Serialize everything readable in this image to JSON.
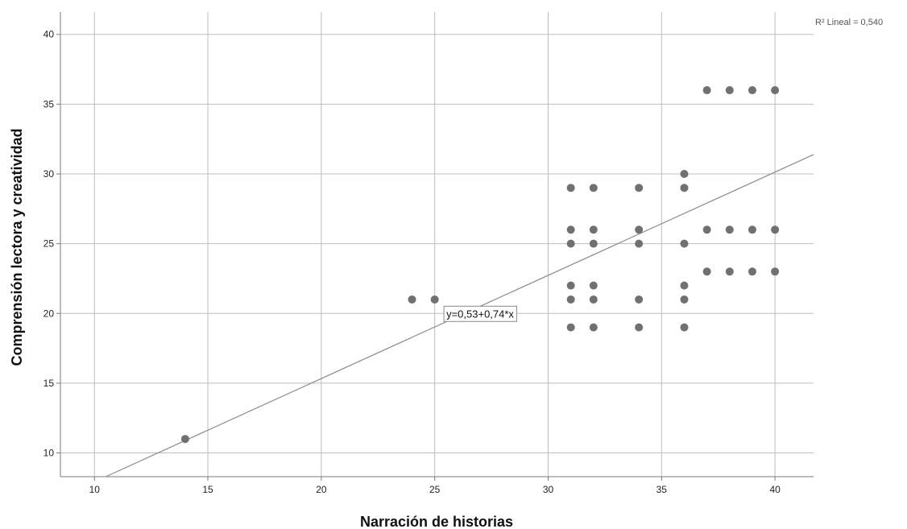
{
  "chart_data": {
    "type": "scatter",
    "xlabel": "Narración de historias",
    "ylabel": "Comprensión lectora y creatividad",
    "xlim": [
      8.5,
      41.7
    ],
    "ylim": [
      8.3,
      41.6
    ],
    "x_ticks": [
      10,
      15,
      20,
      25,
      30,
      35,
      40
    ],
    "y_ticks": [
      10,
      15,
      20,
      25,
      30,
      35,
      40
    ],
    "grid": true,
    "points": [
      {
        "x": 14,
        "y": 11
      },
      {
        "x": 24,
        "y": 21
      },
      {
        "x": 25,
        "y": 21
      },
      {
        "x": 31,
        "y": 29
      },
      {
        "x": 31,
        "y": 26
      },
      {
        "x": 31,
        "y": 25
      },
      {
        "x": 31,
        "y": 22
      },
      {
        "x": 31,
        "y": 21
      },
      {
        "x": 31,
        "y": 19
      },
      {
        "x": 32,
        "y": 29
      },
      {
        "x": 32,
        "y": 26
      },
      {
        "x": 32,
        "y": 25
      },
      {
        "x": 32,
        "y": 22
      },
      {
        "x": 32,
        "y": 21
      },
      {
        "x": 32,
        "y": 19
      },
      {
        "x": 34,
        "y": 29
      },
      {
        "x": 34,
        "y": 26
      },
      {
        "x": 34,
        "y": 25
      },
      {
        "x": 34,
        "y": 21
      },
      {
        "x": 34,
        "y": 19
      },
      {
        "x": 36,
        "y": 30
      },
      {
        "x": 36,
        "y": 29
      },
      {
        "x": 36,
        "y": 25
      },
      {
        "x": 36,
        "y": 22
      },
      {
        "x": 36,
        "y": 21
      },
      {
        "x": 36,
        "y": 19
      },
      {
        "x": 37,
        "y": 36
      },
      {
        "x": 37,
        "y": 26
      },
      {
        "x": 37,
        "y": 23
      },
      {
        "x": 38,
        "y": 36
      },
      {
        "x": 38,
        "y": 26
      },
      {
        "x": 38,
        "y": 23
      },
      {
        "x": 39,
        "y": 36
      },
      {
        "x": 39,
        "y": 26
      },
      {
        "x": 39,
        "y": 23
      },
      {
        "x": 40,
        "y": 36
      },
      {
        "x": 40,
        "y": 26
      },
      {
        "x": 40,
        "y": 23
      }
    ],
    "fit_line": {
      "intercept": 0.53,
      "slope": 0.74
    },
    "equation_label": "y=0,53+0,74*x",
    "equation_anchor": {
      "x": 27.5,
      "y": 20
    },
    "r2_label": "R² Lineal = 0,540",
    "colors": {
      "points": "#707070",
      "fit_line": "#8a8a8a",
      "grid": "#bdbdbd",
      "axis": "#7a7a7a"
    }
  }
}
